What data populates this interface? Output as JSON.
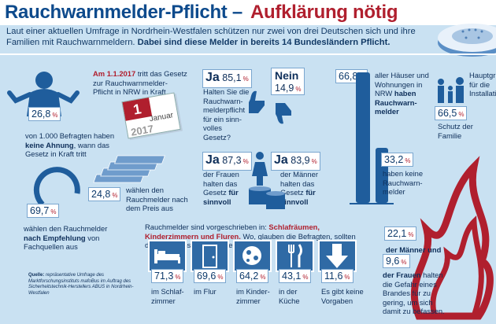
{
  "header": {
    "title_main": "Rauchwarnmelder-Pflicht –",
    "title_accent": "Aufklärung nötig"
  },
  "intro": {
    "text": "Laut einer aktuellen Umfrage in Nordrhein-Westfalen schützen nur zwei von drei Deutschen sich und ihre Familien mit Rauchwarnmeldern.",
    "bold": "Dabei sind diese Melder in bereits 14 Bundesländern Pflicht."
  },
  "unknown_law": {
    "percent": "26,8",
    "unit": "%",
    "text_pre": "von 1.000 Befragten haben",
    "text_bold": "keine Ahnung",
    "text_post": ", wann das Gesetz in Kraft tritt"
  },
  "law_date": {
    "date": "Am 1.1.2017",
    "text": "tritt das Gesetz zur Rauchwarnmelder-Pflicht in NRW in Kraft",
    "calendar_day": "1",
    "calendar_month": "Januar",
    "calendar_year": "2017"
  },
  "price": {
    "percent": "24,8",
    "unit": "%",
    "text": "wählen den Rauchmelder nach dem Preis aus"
  },
  "recommendation": {
    "percent": "69,7",
    "unit": "%",
    "text_pre": "wählen den Rauchmelder",
    "text_bold": "nach Empfehlung",
    "text_post": "von Fachquellen aus"
  },
  "law_sense": {
    "yes_label": "Ja",
    "yes_percent": "85,1",
    "no_label": "Nein",
    "no_percent": "14,9",
    "unit": "%",
    "text": "Halten Sie die Rauchwarn-melderpflicht für ein sinn-volles Gesetz?"
  },
  "women": {
    "label": "Ja",
    "percent": "87,3",
    "unit": "%",
    "text_pre": "der Frauen halten das Gesetz",
    "text_bold": "für sinnvoll"
  },
  "men": {
    "label": "Ja",
    "percent": "83,9",
    "unit": "%",
    "text_pre": "der Männer halten das Gesetz",
    "text_bold": "für sinnvoll"
  },
  "houses": {
    "percent_yes": "66,8",
    "percent_no": "33,2",
    "unit": "%",
    "text_yes_pre": "aller Häuser und Wohnungen in NRW",
    "text_yes_bold": "haben Rauchwarn-melder",
    "text_no": "haben keine Rauchwarn-melder"
  },
  "family": {
    "heading": "Hauptgru",
    "heading2": "für die",
    "heading3": "Installati",
    "percent": "66,5",
    "unit": "%",
    "text": "Schutz der Familie"
  },
  "rooms": {
    "intro_pre": "Rauchmelder sind vorgeschrieben in:",
    "intro_red": "Schlafräumen, Kinderzimmern und Fluren.",
    "intro_post": "Wo, glauben die Befragten, sollten die Melder installiert werden?",
    "items": [
      {
        "percent": "71,3",
        "label": "im Schlaf-zimmer",
        "icon": "bed-icon"
      },
      {
        "percent": "69,6",
        "label": "im Flur",
        "icon": "door-icon"
      },
      {
        "percent": "64,2",
        "label": "im Kinder-zimmer",
        "icon": "ball-icon"
      },
      {
        "percent": "43,1",
        "label": "in der Küche",
        "icon": "cutlery-icon"
      },
      {
        "percent": "11,6",
        "label": "Es gibt keine Vorgaben",
        "icon": "arrow-down-icon"
      }
    ],
    "unit": "%"
  },
  "risk": {
    "men_percent": "22,1",
    "women_percent": "9,6",
    "unit": "%",
    "men_text": "der Männer und",
    "women_text_bold": "der Frauen",
    "women_text": "halten die Gefahr eines Brandes für zu gering, um sich damit zu befassen."
  },
  "source": {
    "label": "Quelle:",
    "text": "repräsentative Umfrage des Marktforschungsinstituts mafoBus im Auftrag des Sicherheitstechnik-Herstellers ABUS in Nordrhein-Westfalen"
  },
  "colors": {
    "background": "#c9e1f2",
    "title_blue": "#0d4a8c",
    "accent_red": "#b01f2e",
    "icon_blue": "#1f5d9c"
  }
}
